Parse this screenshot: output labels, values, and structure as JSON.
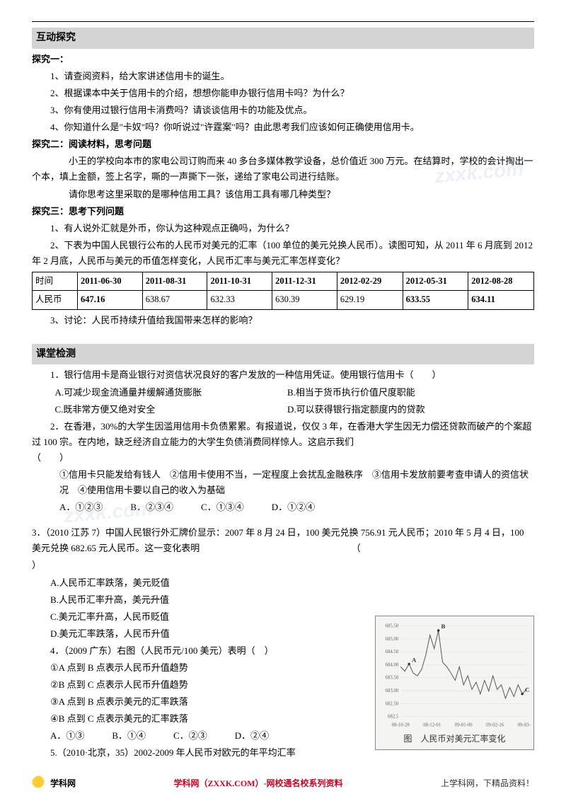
{
  "sections": {
    "s1_title": "互动探究",
    "s2_title": "课堂检测"
  },
  "tanjiu1_header": "探究一：",
  "tanjiu1_items": [
    "1、请查阅资料，给大家讲述信用卡的诞生。",
    "2、根据课本中关于信用卡的介绍，想想你能申办银行信用卡吗？为什么？",
    "3、你有使用过银行信用卡消费吗？请谈谈信用卡的功能及优点。",
    "4、你知道什么是\"卡奴\"吗？你听说过\"许霆案\"吗？由此思考我们应该如何正确使用信用卡。"
  ],
  "tanjiu2_header": "探究二：阅读材料，思考问题",
  "tanjiu2_body1": "小王的学校向本市的家电公司订购而来 40 多台多媒体教学设备，总价值近 300 万元。在结算时，学校的会计掏出一个本，填上金额，签上名字，嘶的一声撕下一张，递给了家电公司进行结账。",
  "tanjiu2_body2": "请你思考这里采取的是哪种信用工具？该信用工具有哪几种类型？",
  "tanjiu3_header": "探究三：思考下列问题",
  "tanjiu3_q1": "1、有人说外汇就是外币，你认为这种观点正确吗，为什么？",
  "tanjiu3_q2": "2、下表为中国人民银行公布的人民币对美元的汇率（100 单位的美元兑换人民币）。读图可知，从 2011 年 6 月底到 2012 年 2 月底，人民币与美元的币值怎样变化，人民币汇率与美元汇率怎样变化？",
  "table": {
    "row_headers": [
      "时间",
      "人民币"
    ],
    "cols": [
      "2011-06-30",
      "2011-08-31",
      "2011-10-31",
      "2011-12-31",
      "2012-02-29",
      "2012-05-31",
      "2012-08-28"
    ],
    "values": [
      "647.16",
      "638.67",
      "632.33",
      "630.39",
      "629.19",
      "633.55",
      "634.11"
    ],
    "bold_cols": [
      5,
      6
    ]
  },
  "tanjiu3_q3": "3、讨论：人民币持续升值给我国带来怎样的影响？",
  "quiz": {
    "q1": "1．银行信用卡是商业银行对资信状况良好的客户发放的一种信用凭证。使用银行信用卡（　　）",
    "q1_opts": [
      "A.可减少现金流通量并缓解通货膨胀",
      "B.相当于货币执行价值尺度职能",
      "C.既非常方便又绝对安全",
      "D.可以获得银行指定额度内的贷款"
    ],
    "q2a": "2．在香港，30%的大学生因滥用信用卡负债累累。有报道说，仅仅 3 年，在香港大学生因无力偿还贷款而破产的个案超过 100 宗。在内地，缺乏经济自立能力的大学生负债消费同样惊人。这启示我们　　　　　　　　　　　　　　　　　　　　　　　　　　　　　　　　　　　　　　　（　　）",
    "q2_stems": "①信用卡只能发给有钱人　②信用卡使用不当，一定程度上会扰乱金融秩序　③信用卡发放前要考查申请人的资信状况　④使用信用卡要以自己的收入为基础",
    "q2_opts": "A．①②③　　　B．②③④　　　C．①③④　　　D．①②④",
    "q3a": "3．（2010 江苏 7）中国人民银行外汇牌价显示：2007 年 8 月 24 日，100 美元兑换 756.91 元人民币；2010 年 5 月 4 日，100 美元兑换 682.65 元人民币。这一变化表明　　　　　　　　　　　　　　　　　（",
    "q3b": "）",
    "q3_opts": [
      "A.人民币汇率跌落，美元贬值",
      "B.人民币汇率升高，美元升值",
      "C.美元汇率升高，人民币贬值",
      "D.美元汇率跌落，人民币升值"
    ],
    "q4": "4．（2009 广东）右图（人民币元/100 美元）表明（　）",
    "q4_stems": [
      "①A 点到 B 点表示人民币升值趋势",
      "②B 点到 C 点表示人民币升值趋势",
      "③A 点到 B 点表示美元的汇率跌落",
      "④B 点到 C 点表示美元的汇率跌落"
    ],
    "q4_opts": "A．①③　　　B．①④　　　C．②③　　　D．②④",
    "q5": "5.（2010·北京，35）2002-2009 年人民币对欧元的年平均汇率"
  },
  "chart": {
    "caption": "图　人民币对美元汇率变化",
    "y_ticks": [
      "685.50",
      "685.00",
      "684.50",
      "684.00",
      "683.50",
      "683.00",
      "682.50",
      "682.5"
    ],
    "x_ticks": [
      "08-10-28",
      "08-12-01",
      "09-01-06",
      "09-02-16",
      "09-03-20"
    ],
    "labels": {
      "A": "A",
      "B": "B",
      "C": "C"
    },
    "line_color": "#555555",
    "bg": "#f4f4f2",
    "points": [
      [
        0,
        0.55
      ],
      [
        2,
        0.5
      ],
      [
        4,
        0.58
      ],
      [
        6,
        0.48
      ],
      [
        8,
        0.45
      ],
      [
        10,
        0.52
      ],
      [
        12,
        0.68
      ],
      [
        14,
        0.9
      ],
      [
        16,
        0.75
      ],
      [
        18,
        0.95
      ],
      [
        20,
        0.6
      ],
      [
        22,
        0.55
      ],
      [
        24,
        0.48
      ],
      [
        26,
        0.4
      ],
      [
        28,
        0.55
      ],
      [
        30,
        0.35
      ],
      [
        32,
        0.45
      ],
      [
        34,
        0.3
      ],
      [
        36,
        0.38
      ],
      [
        38,
        0.25
      ],
      [
        40,
        0.4
      ],
      [
        42,
        0.28
      ],
      [
        44,
        0.45
      ],
      [
        46,
        0.3
      ],
      [
        48,
        0.35
      ],
      [
        50,
        0.2
      ],
      [
        52,
        0.32
      ],
      [
        54,
        0.22
      ],
      [
        56,
        0.35
      ],
      [
        58,
        0.25
      ],
      [
        60,
        0.3
      ]
    ],
    "A_pos": [
      4,
      0.58
    ],
    "B_pos": [
      18,
      0.95
    ],
    "C_pos": [
      58,
      0.25
    ]
  },
  "footer": {
    "brand": "学科网",
    "mid": "学科网（ZXXK.COM）-网校通名校系列资料",
    "right": "上学科网，下精品资料！"
  },
  "watermarks": [
    "zxxk.com",
    "zxxk.com"
  ]
}
